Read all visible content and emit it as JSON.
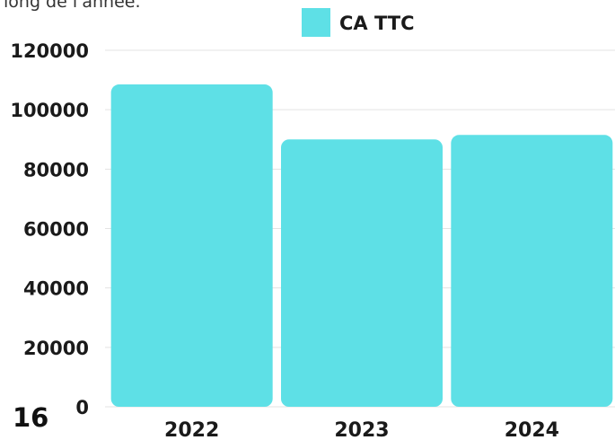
{
  "page": {
    "top_text": "long de l'année.",
    "page_number": "16"
  },
  "chart_data": {
    "type": "bar",
    "categories": [
      "2022",
      "2023",
      "2024"
    ],
    "series": [
      {
        "name": "CA TTC",
        "values": [
          108500,
          90000,
          91500
        ],
        "color": "#5ee0e6"
      }
    ],
    "ylim": [
      0,
      120000
    ],
    "yticks": [
      0,
      20000,
      40000,
      60000,
      80000,
      100000,
      120000
    ],
    "grid": true,
    "legend": "top-center",
    "title": "",
    "xlabel": "",
    "ylabel": ""
  }
}
